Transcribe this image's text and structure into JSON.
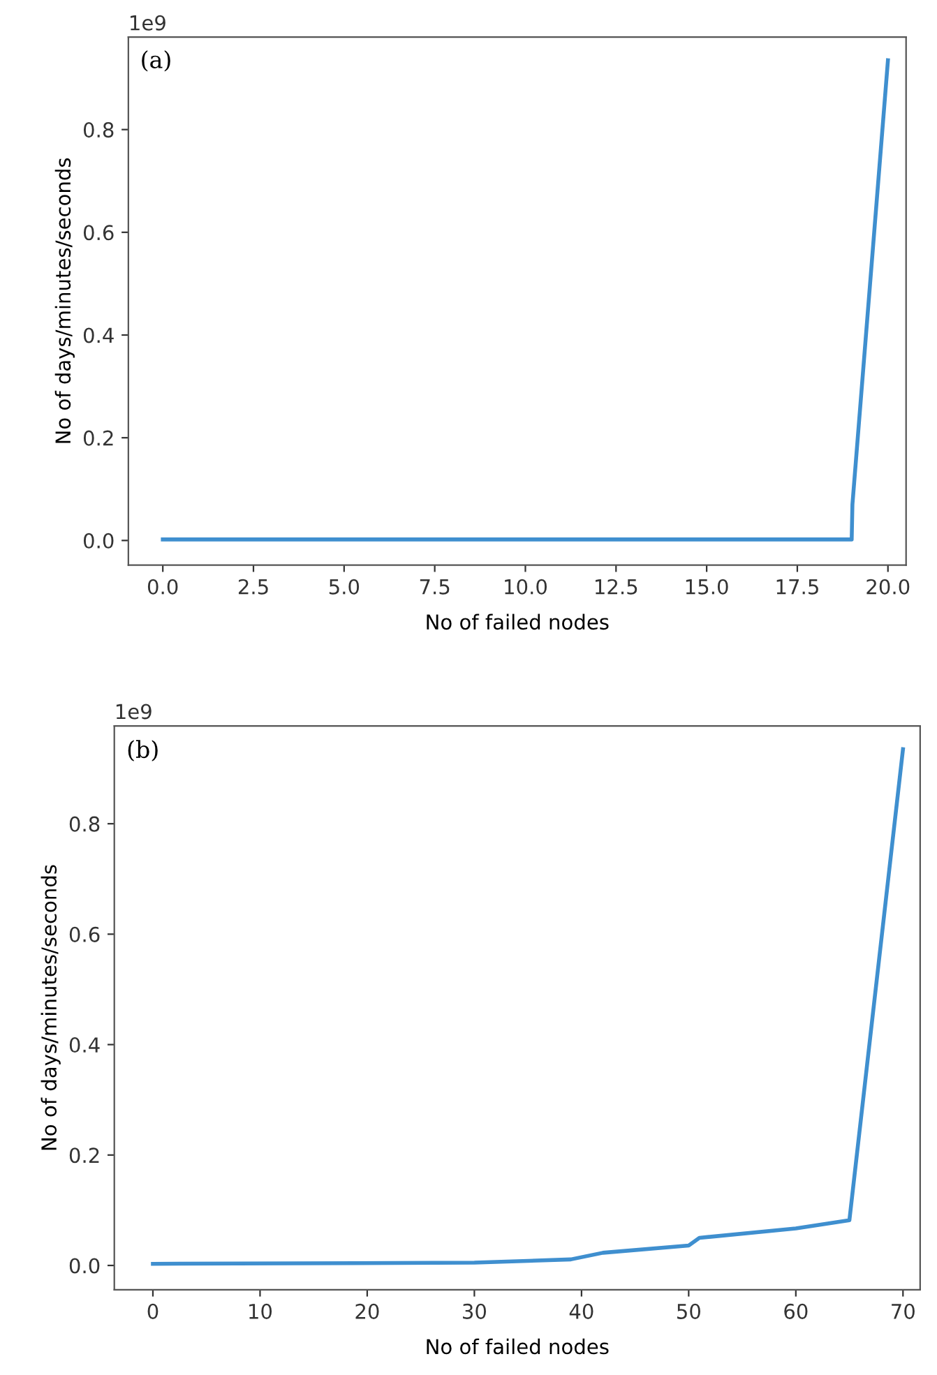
{
  "chart_data": [
    {
      "type": "line",
      "annotations": [
        "(a)",
        "1e9"
      ],
      "xlabel": "No of failed nodes",
      "ylabel": "No of days/minutes/seconds",
      "series": [
        {
          "color": "#3f8fcf",
          "x": [
            0,
            19,
            19.02,
            20
          ],
          "values": [
            0.002,
            0.002,
            0.07,
            0.935
          ]
        }
      ],
      "xlim": [
        -0.95,
        20.5
      ],
      "xticks": [
        {
          "value": 0,
          "label": "0.0"
        },
        2.5,
        {
          "value": 5,
          "label": "5.0"
        },
        7.5,
        {
          "value": 10,
          "label": "10.0"
        },
        12.5,
        {
          "value": 15,
          "label": "15.0"
        },
        17.5,
        {
          "value": 20,
          "label": "20.0"
        }
      ],
      "ylim": [
        -0.048,
        0.98
      ],
      "yticks": [
        {
          "value": 0,
          "label": "0.0"
        },
        0.2,
        0.4,
        0.6,
        0.8
      ],
      "grid": false,
      "legend": false
    },
    {
      "type": "line",
      "annotations": [
        "(b)",
        "1e9"
      ],
      "xlabel": "No of failed nodes",
      "ylabel": "No of days/minutes/seconds",
      "series": [
        {
          "color": "#3f8fcf",
          "x": [
            0,
            30,
            39,
            42,
            50,
            51,
            60,
            65,
            70
          ],
          "values": [
            0.003,
            0.005,
            0.011,
            0.023,
            0.036,
            0.05,
            0.067,
            0.082,
            0.935
          ]
        }
      ],
      "xlim": [
        -3.6,
        71.6
      ],
      "xticks": [
        0,
        10,
        20,
        30,
        40,
        50,
        60,
        70
      ],
      "ylim": [
        -0.044,
        0.977
      ],
      "yticks": [
        {
          "value": 0,
          "label": "0.0"
        },
        0.2,
        0.4,
        0.6,
        0.8
      ],
      "grid": false,
      "legend": false
    }
  ]
}
